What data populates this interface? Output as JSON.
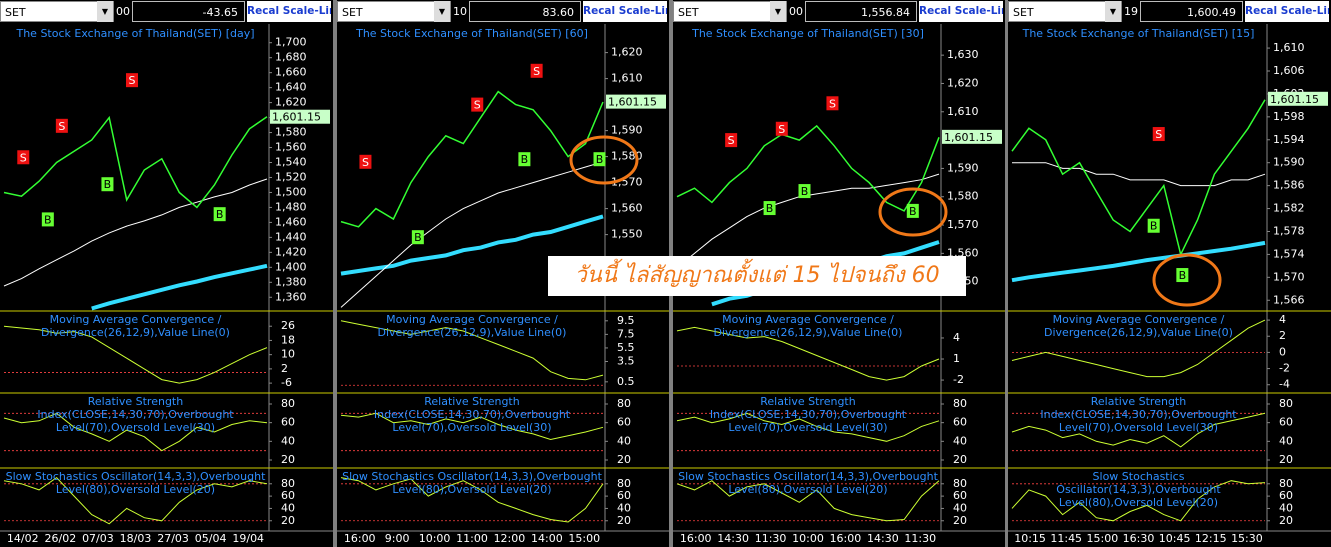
{
  "colors": {
    "close": "#33ff33",
    "ma": "#ffffff",
    "ma_long": "#33ddff",
    "indicator": "#ccff33",
    "level": "#ff4444"
  },
  "annotation": "วันนี้ ไล่สัญญาณตั้งแต่ 15 ไปจนถึง 60",
  "panels": [
    {
      "header": {
        "symbol": "SET",
        "code": "00",
        "value": "-43.65",
        "button": "Recal Scale-Linear"
      },
      "title": "The Stock Exchange of Thailand(SET) [day]",
      "price": {
        "ylim": [
          1343,
          1725
        ],
        "yticks": [
          {
            "value": 1360,
            "label": "1,360"
          },
          {
            "value": 1380,
            "label": "1,380"
          },
          {
            "value": 1400,
            "label": "1,400"
          },
          {
            "value": 1420,
            "label": "1,420"
          },
          {
            "value": 1440,
            "label": "1,440"
          },
          {
            "value": 1460,
            "label": "1,460"
          },
          {
            "value": 1480,
            "label": "1,480"
          },
          {
            "value": 1500,
            "label": "1,500"
          },
          {
            "value": 1520,
            "label": "1,520"
          },
          {
            "value": 1540,
            "label": "1,540"
          },
          {
            "value": 1560,
            "label": "1,560"
          },
          {
            "value": 1580,
            "label": "1,580"
          },
          {
            "value": 1600,
            "label": "1,600"
          },
          {
            "value": 1620,
            "label": "1,620"
          },
          {
            "value": 1640,
            "label": "1,640"
          },
          {
            "value": 1660,
            "label": "1,660"
          },
          {
            "value": 1680,
            "label": "1,680"
          },
          {
            "value": 1700,
            "label": "1,700"
          }
        ],
        "last": {
          "value": 1601.15,
          "label": "1,601.15"
        },
        "close": [
          1500,
          1495,
          1515,
          1540,
          1555,
          1570,
          1600,
          1490,
          1530,
          1545,
          1500,
          1480,
          1510,
          1550,
          1585,
          1601
        ],
        "ma": [
          1375,
          1385,
          1398,
          1410,
          1422,
          1435,
          1446,
          1455,
          1462,
          1470,
          1480,
          1487,
          1494,
          1500,
          1510,
          1518
        ],
        "ma_long": [
          null,
          null,
          null,
          null,
          null,
          1345,
          1352,
          1358,
          1364,
          1370,
          1376,
          1381,
          1387,
          1392,
          1397,
          1402
        ],
        "markers": [
          {
            "label": "S",
            "x": 1.1,
            "price": 1547
          },
          {
            "label": "S",
            "x": 3.3,
            "price": 1589
          },
          {
            "label": "S",
            "x": 7.3,
            "price": 1650
          },
          {
            "label": "B",
            "x": 2.5,
            "price": 1464
          },
          {
            "label": "B",
            "x": 5.9,
            "price": 1511
          },
          {
            "label": "B",
            "x": 12.3,
            "price": 1471
          }
        ]
      },
      "indicators": [
        {
          "title": "Moving Average Convergence / Divergence(26,12,9),Value Line(0)",
          "ylim": [
            -11,
            34
          ],
          "yticks": [
            26,
            18,
            10,
            2,
            -6
          ],
          "levels": [
            0
          ],
          "values": [
            26,
            25,
            24,
            22,
            23,
            20,
            14,
            8,
            2,
            -4,
            -6,
            -4,
            0,
            5,
            10,
            14
          ]
        },
        {
          "title": "Relative Strength Index(CLOSE,14,30,70),Overbought Level(70),Oversold Level(30)",
          "ylim": [
            12.5,
            90.7
          ],
          "yticks": [
            80,
            60,
            40,
            20
          ],
          "levels": [
            70,
            30
          ],
          "values": [
            65,
            60,
            62,
            70,
            55,
            48,
            40,
            52,
            45,
            30,
            40,
            55,
            50,
            58,
            62,
            60
          ]
        },
        {
          "title": "Slow Stochastics Oscillator(14,3,3),Overbought Level(80),Oversold Level(20)",
          "ylim": [
            5,
            104
          ],
          "yticks": [
            80,
            60,
            40,
            20
          ],
          "levels": [
            80,
            20
          ],
          "values": [
            85,
            80,
            70,
            90,
            60,
            30,
            15,
            40,
            25,
            20,
            50,
            70,
            80,
            75,
            85,
            80
          ]
        }
      ],
      "xlabels": [
        "14/02",
        "26/02",
        "07/03",
        "18/03",
        "27/03",
        "05/04",
        "19/04"
      ]
    },
    {
      "header": {
        "symbol": "SET",
        "code": "10",
        "value": "83.60",
        "button": "Recal Scale-Linear"
      },
      "title": "The Stock Exchange of Thailand(SET) [60]",
      "price": {
        "ylim": [
          1521,
          1631
        ],
        "yticks": [
          {
            "value": 1550,
            "label": "1,550"
          },
          {
            "value": 1560,
            "label": "1,560"
          },
          {
            "value": 1570,
            "label": "1,570"
          },
          {
            "value": 1580,
            "label": "1,580"
          },
          {
            "value": 1590,
            "label": "1,590"
          },
          {
            "value": 1610,
            "label": "1,610"
          },
          {
            "value": 1620,
            "label": "1,620"
          }
        ],
        "last": {
          "value": 1601.15,
          "label": "1,601.15"
        },
        "close": [
          1555,
          1553,
          1560,
          1556,
          1570,
          1580,
          1588,
          1585,
          1595,
          1605,
          1600,
          1598,
          1590,
          1580,
          1585,
          1601
        ],
        "ma": [
          1522,
          1528,
          1534,
          1540,
          1546,
          1551,
          1556,
          1560,
          1563,
          1566,
          1568,
          1570,
          1572,
          1574,
          1576,
          1578
        ],
        "ma_long": [
          1535,
          1536,
          1537,
          1538,
          1540,
          1541,
          1542,
          1544,
          1545,
          1547,
          1548,
          1550,
          1551,
          1553,
          1555,
          1557
        ],
        "markers": [
          {
            "label": "S",
            "x": 1.4,
            "price": 1578
          },
          {
            "label": "S",
            "x": 7.8,
            "price": 1600
          },
          {
            "label": "S",
            "x": 11.2,
            "price": 1613
          },
          {
            "label": "B",
            "x": 4.4,
            "price": 1549
          },
          {
            "label": "B",
            "x": 10.5,
            "price": 1579
          },
          {
            "label": "B",
            "x": 14.8,
            "price": 1579
          }
        ]
      },
      "indicators": [
        {
          "title": "Moving Average Convergence / Divergence(26,12,9),Value Line(0)",
          "ylim": [
            -1,
            10.8
          ],
          "yticks": [
            9.5,
            7.5,
            5.5,
            3.5,
            0.5
          ],
          "levels": [
            0
          ],
          "values": [
            9.5,
            9,
            8.5,
            8,
            7.5,
            8,
            8.5,
            8,
            7,
            6,
            5,
            4,
            2,
            1,
            0.8,
            1.5
          ]
        },
        {
          "title": "Relative Strength Index(CLOSE,14,30,70),Overbought Level(70),Oversold Level(30)",
          "ylim": [
            12.5,
            90.7
          ],
          "yticks": [
            80,
            60,
            40,
            20
          ],
          "levels": [
            70,
            30
          ],
          "values": [
            68,
            66,
            70,
            60,
            62,
            58,
            64,
            60,
            66,
            58,
            52,
            48,
            42,
            46,
            50,
            55
          ]
        },
        {
          "title": "Slow Stochastics Oscillator(14,3,3),Overbought Level(80),Oversold Level(20)",
          "ylim": [
            5,
            104
          ],
          "yticks": [
            80,
            60,
            40,
            20
          ],
          "levels": [
            80,
            20
          ],
          "values": [
            90,
            85,
            70,
            80,
            88,
            60,
            75,
            85,
            70,
            50,
            40,
            30,
            22,
            18,
            40,
            80
          ]
        }
      ],
      "xlabels": [
        "16:00",
        "9:00",
        "10:00",
        "11:00",
        "12:00",
        "14:00",
        "15:00"
      ]
    },
    {
      "header": {
        "symbol": "SET",
        "code": "00",
        "value": "1,556.84",
        "button": "Recal Scale-Linear"
      },
      "title": "The Stock Exchange of Thailand(SET) [30]",
      "price": {
        "ylim": [
          1540,
          1641
        ],
        "yticks": [
          {
            "value": 1550,
            "label": "1,550"
          },
          {
            "value": 1560,
            "label": "1,560"
          },
          {
            "value": 1570,
            "label": "1,570"
          },
          {
            "value": 1580,
            "label": "1,580"
          },
          {
            "value": 1590,
            "label": "1,590"
          },
          {
            "value": 1610,
            "label": "1,610"
          },
          {
            "value": 1620,
            "label": "1,620"
          },
          {
            "value": 1630,
            "label": "1,630"
          }
        ],
        "last": {
          "value": 1601.15,
          "label": "1,601.15"
        },
        "close": [
          1580,
          1583,
          1578,
          1585,
          1590,
          1598,
          1602,
          1600,
          1605,
          1598,
          1590,
          1585,
          1578,
          1575,
          1585,
          1601
        ],
        "ma": [
          1555,
          1560,
          1565,
          1569,
          1573,
          1576,
          1578,
          1580,
          1581,
          1582,
          1583,
          1583,
          1584,
          1585,
          1586,
          1588
        ],
        "ma_long": [
          null,
          null,
          1542,
          1544,
          1545,
          1547,
          1549,
          1550,
          1552,
          1554,
          1555,
          1557,
          1559,
          1560,
          1562,
          1564
        ],
        "markers": [
          {
            "label": "S",
            "x": 3.1,
            "price": 1600
          },
          {
            "label": "S",
            "x": 6,
            "price": 1604
          },
          {
            "label": "S",
            "x": 8.9,
            "price": 1613
          },
          {
            "label": "B",
            "x": 5.3,
            "price": 1576
          },
          {
            "label": "B",
            "x": 7.3,
            "price": 1582
          },
          {
            "label": "B",
            "x": 13.5,
            "price": 1575
          }
        ]
      },
      "indicators": [
        {
          "title": "Moving Average Convergence / Divergence(26,12,9),Value Line(0)",
          "ylim": [
            -3.7,
            7.7
          ],
          "yticks": [
            4,
            1,
            -2
          ],
          "levels": [
            0
          ],
          "values": [
            5,
            5.5,
            5,
            4.5,
            4,
            4.2,
            3.5,
            2.5,
            1.5,
            0.5,
            -0.5,
            -1.5,
            -2,
            -1.5,
            0,
            1
          ]
        },
        {
          "title": "Relative Strength Index(CLOSE,14,30,70),Overbought Level(70),Oversold Level(30)",
          "ylim": [
            12.5,
            90.7
          ],
          "yticks": [
            80,
            60,
            40,
            20
          ],
          "levels": [
            70,
            30
          ],
          "values": [
            62,
            66,
            60,
            64,
            70,
            62,
            58,
            64,
            56,
            50,
            48,
            44,
            40,
            46,
            56,
            62
          ]
        },
        {
          "title": "Slow Stochastics Oscillator(14,3,3),Overbought Level(80),Oversold Level(20)",
          "ylim": [
            5,
            104
          ],
          "yticks": [
            80,
            60,
            40,
            20
          ],
          "levels": [
            80,
            20
          ],
          "values": [
            80,
            70,
            85,
            60,
            75,
            80,
            65,
            50,
            70,
            40,
            30,
            25,
            20,
            22,
            60,
            85
          ]
        }
      ],
      "xlabels": [
        "16:00",
        "14:30",
        "11:30",
        "10:00",
        "16:00",
        "14:30",
        "11:30"
      ]
    },
    {
      "header": {
        "symbol": "SET",
        "code": "19",
        "value": "1,600.49",
        "button": "Recal Scale-Linear"
      },
      "title": "The Stock Exchange of Thailand(SET) [15]",
      "price": {
        "ylim": [
          1564.3,
          1614.2
        ],
        "yticks": [
          {
            "value": 1566,
            "label": "1,566"
          },
          {
            "value": 1570,
            "label": "1,570"
          },
          {
            "value": 1574,
            "label": "1,574"
          },
          {
            "value": 1578,
            "label": "1,578"
          },
          {
            "value": 1582,
            "label": "1,582"
          },
          {
            "value": 1586,
            "label": "1,586"
          },
          {
            "value": 1590,
            "label": "1,590"
          },
          {
            "value": 1594,
            "label": "1,594"
          },
          {
            "value": 1598,
            "label": "1,598"
          },
          {
            "value": 1602,
            "label": "1,602"
          },
          {
            "value": 1606,
            "label": "1,606"
          },
          {
            "value": 1610,
            "label": "1,610"
          }
        ],
        "last": {
          "value": 1601.15,
          "label": "1,601.15"
        },
        "close": [
          1592,
          1596,
          1594,
          1588,
          1590,
          1585,
          1580,
          1578,
          1582,
          1586,
          1574,
          1580,
          1588,
          1592,
          1596,
          1601
        ],
        "ma": [
          1590,
          1590,
          1590,
          1589,
          1589,
          1588,
          1588,
          1587,
          1587,
          1587,
          1586,
          1586,
          1586,
          1587,
          1587,
          1588
        ],
        "ma_long": [
          1569.5,
          1570,
          1570.4,
          1570.8,
          1571.2,
          1571.6,
          1572,
          1572.5,
          1573,
          1573.4,
          1573.8,
          1574.2,
          1574.6,
          1575,
          1575.5,
          1576
        ],
        "markers": [
          {
            "label": "S",
            "x": 8.7,
            "price": 1595
          },
          {
            "label": "B",
            "x": 8.4,
            "price": 1579
          },
          {
            "label": "B",
            "x": 10.1,
            "price": 1570.4
          }
        ]
      },
      "indicators": [
        {
          "title": "Moving Average Convergence / Divergence(26,12,9),Value Line(0)",
          "ylim": [
            -4.9,
            5
          ],
          "yticks": [
            4,
            2,
            0,
            -2,
            -4
          ],
          "levels": [
            0
          ],
          "values": [
            -1,
            -0.5,
            0,
            -0.5,
            -1,
            -1.5,
            -2,
            -2.5,
            -3,
            -3,
            -2.5,
            -1.5,
            0,
            1.5,
            3,
            4
          ]
        },
        {
          "title": "Relative Strength Index(CLOSE,14,30,70),Overbought Level(70),Oversold Level(30)",
          "ylim": [
            12.5,
            90.7
          ],
          "yticks": [
            80,
            60,
            40,
            20
          ],
          "levels": [
            70,
            30
          ],
          "values": [
            50,
            56,
            52,
            44,
            48,
            40,
            36,
            42,
            38,
            46,
            34,
            48,
            58,
            62,
            66,
            70
          ]
        },
        {
          "title": "Slow Stochastics Oscillator(14,3,3),Overbought Level(80),Oversold Level(20)",
          "ylim": [
            5,
            104
          ],
          "yticks": [
            80,
            60,
            40,
            20
          ],
          "levels": [
            80,
            20
          ],
          "values": [
            40,
            70,
            60,
            30,
            50,
            25,
            20,
            35,
            45,
            30,
            20,
            55,
            75,
            85,
            80,
            82
          ]
        }
      ],
      "xlabels": [
        "10:15",
        "11:45",
        "15:00",
        "16:30",
        "10:45",
        "12:15",
        "15:30"
      ]
    }
  ]
}
